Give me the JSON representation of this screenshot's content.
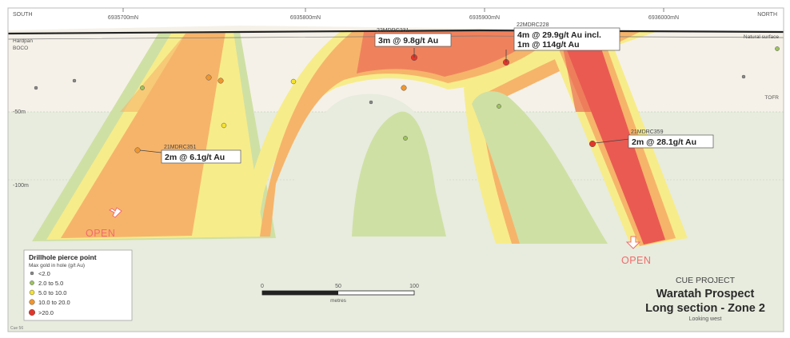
{
  "orientation": {
    "left": "SOUTH",
    "right": "NORTH"
  },
  "northings": [
    "6935700mN",
    "6935800mN",
    "6935900mN",
    "6936000mN"
  ],
  "surface_labels": {
    "hardpan_line1": "Hardpan",
    "hardpan_line2": "BOCO",
    "natural_surface": "Natural surface",
    "tofr": "TOFR"
  },
  "depth_labels": [
    "-50m",
    "-100m"
  ],
  "drillhole_intercepts": [
    {
      "hole": "22MDRC231",
      "line1": "3m @ 9.8g/t Au",
      "line2": ""
    },
    {
      "hole": "22MDRC228",
      "line1": "4m @ 29.9g/t Au incl.",
      "line2": "1m @ 114g/t Au"
    },
    {
      "hole": "21MDRC351",
      "line1": "2m @ 6.1g/t Au",
      "line2": ""
    },
    {
      "hole": "21MDRC359",
      "line1": "2m @ 28.1g/t Au",
      "line2": ""
    }
  ],
  "open_labels": [
    "OPEN",
    "OPEN"
  ],
  "legend": {
    "title": "Drillhole pierce point",
    "subtitle": "Max gold in hole (g/t Au)",
    "items": [
      {
        "label": "<2.0",
        "color": "#8a8a8a"
      },
      {
        "label": "2.0 to 5.0",
        "color": "#9cc45a"
      },
      {
        "label": "5.0 to 10.0",
        "color": "#f4e230"
      },
      {
        "label": "10.0 to 20.0",
        "color": "#f0962f"
      },
      {
        "label": ">20.0",
        "color": "#e2352a"
      }
    ]
  },
  "scale_bar": {
    "ticks": [
      "0",
      "50",
      "100"
    ],
    "unit": "metres"
  },
  "title_block": {
    "project": "CUE PROJECT",
    "title_line1": "Waratah Prospect",
    "title_line2": "Long section - Zone 2",
    "subtitle": "Looking west"
  },
  "footer_note": "Cue 56",
  "colors": {
    "grade_green": "#cfe0a4",
    "grade_yellow": "#f7ec8a",
    "grade_orange": "#f6b46a",
    "grade_red": "#ea5a52",
    "background_weathered": "#f5f1e8",
    "background_fresh": "#e7ecde"
  }
}
